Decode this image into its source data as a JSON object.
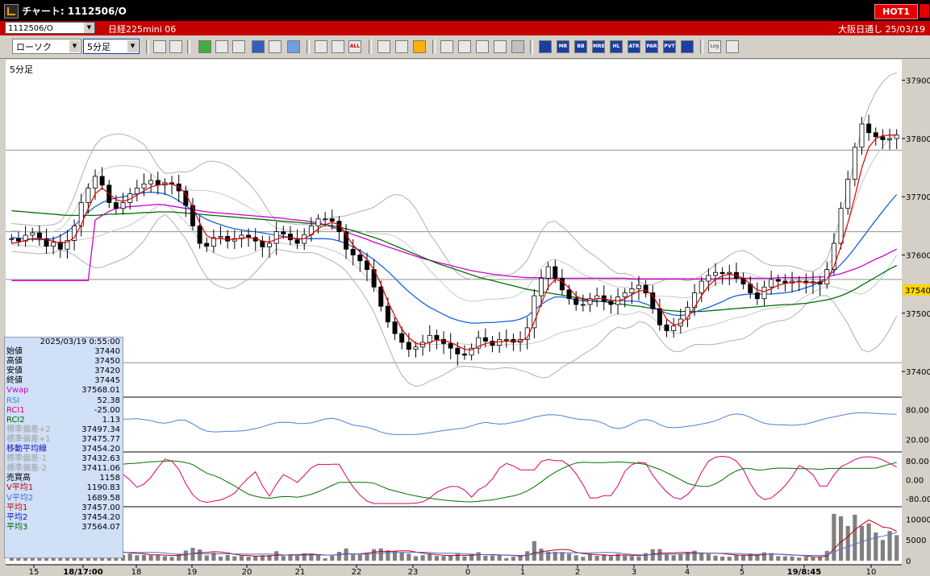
{
  "window": {
    "title": "チャート: 1112506/O",
    "hot_label": "HOT1"
  },
  "infobar": {
    "symbol_code": "1112506/O",
    "symbol_name": "日経225mini 06",
    "market": "大阪日通し",
    "date": "25/03/19"
  },
  "toolbar": {
    "chart_type": "ローソク",
    "interval": "5分足",
    "abbrev_buttons": [
      "ALL",
      "MR",
      "BB",
      "MRE",
      "HL",
      "ATR",
      "PAR",
      "PVT",
      "Log"
    ]
  },
  "chart": {
    "interval_label": "5分足",
    "price_ticks": [
      "37900",
      "37800",
      "37700",
      "37600",
      "37500",
      "37400"
    ],
    "current_price": "37540",
    "rsi_ticks": [
      "80.00",
      "20.00"
    ],
    "rci_ticks": [
      "80.00",
      "0.00",
      "-80.00"
    ],
    "vol_ticks": [
      "10000",
      "5000",
      "0"
    ],
    "time_labels": [
      "15",
      "18/17:00",
      "18",
      "19",
      "20",
      "21",
      "22",
      "23",
      "0",
      "1",
      "2",
      "3",
      "4",
      "5",
      "19/8:45",
      "10"
    ]
  },
  "chart_data": {
    "type": "candlestick",
    "ylim": [
      37360,
      37930
    ],
    "close": [
      37628,
      37624,
      37634,
      37638,
      37628,
      37615,
      37622,
      37610,
      37625,
      37650,
      37690,
      37715,
      37735,
      37720,
      37690,
      37680,
      37690,
      37705,
      37715,
      37722,
      37728,
      37720,
      37724,
      37722,
      37710,
      37685,
      37650,
      37620,
      37615,
      37630,
      37632,
      37624,
      37628,
      37634,
      37630,
      37624,
      37614,
      37620,
      37640,
      37636,
      37626,
      37620,
      37635,
      37650,
      37662,
      37662,
      37658,
      37640,
      37610,
      37600,
      37590,
      37575,
      37545,
      37512,
      37485,
      37465,
      37450,
      37438,
      37442,
      37450,
      37462,
      37455,
      37448,
      37440,
      37430,
      37428,
      37440,
      37458,
      37452,
      37445,
      37455,
      37455,
      37450,
      37455,
      37475,
      37530,
      37560,
      37580,
      37560,
      37540,
      37525,
      37515,
      37515,
      37525,
      37530,
      37520,
      37515,
      37528,
      37535,
      37542,
      37548,
      37535,
      37508,
      37480,
      37470,
      37478,
      37490,
      37510,
      37535,
      37555,
      37565,
      37570,
      37568,
      37570,
      37560,
      37550,
      37535,
      37525,
      37545,
      37558,
      37555,
      37552,
      37555,
      37555,
      37552,
      37554,
      37550,
      37575,
      37620,
      37680,
      37730,
      37785,
      37825,
      37810,
      37803,
      37798,
      37800,
      37806
    ],
    "ma_short": [
      37620,
      37622,
      37625,
      37628,
      37629,
      37626,
      37624,
      37620,
      37622,
      37630,
      37652,
      37680,
      37705,
      37715,
      37705,
      37695,
      37692,
      37696,
      37703,
      37710,
      37717,
      37720,
      37722,
      37722,
      37717,
      37705,
      37682,
      37655,
      37633,
      37628,
      37628,
      37627,
      37627,
      37629,
      37630,
      37628,
      37624,
      37622,
      37627,
      37631,
      37630,
      37627,
      37628,
      37635,
      37645,
      37652,
      37656,
      37652,
      37635,
      37617,
      37605,
      37592,
      37575,
      37550,
      37520,
      37495,
      37473,
      37458,
      37448,
      37446,
      37450,
      37454,
      37453,
      37450,
      37444,
      37438,
      37437,
      37443,
      37448,
      37450,
      37451,
      37452,
      37452,
      37452,
      37458,
      37485,
      37516,
      37545,
      37558,
      37555,
      37543,
      37530,
      37523,
      37522,
      37525,
      37525,
      37522,
      37521,
      37525,
      37532,
      37538,
      37540,
      37530,
      37510,
      37490,
      37480,
      37482,
      37493,
      37510,
      37530,
      37547,
      37558,
      37564,
      37567,
      37565,
      37560,
      37550,
      37540,
      37537,
      37542,
      37548,
      37551,
      37553,
      37554,
      37553,
      37553,
      37552,
      37558,
      37580,
      37615,
      37655,
      37700,
      37750,
      37785,
      37800,
      37805,
      37806,
      37806
    ],
    "ma_mid": [
      37630,
      37629,
      37628,
      37627,
      37626,
      37627,
      37628,
      37633,
      37640,
      37650,
      37662,
      37674,
      37683,
      37690,
      37695,
      37698,
      37700,
      37702,
      37705,
      37707,
      37708,
      37707,
      37705,
      37700,
      37693,
      37685,
      37676,
      37668,
      37661,
      37656,
      37652,
      37648,
      37645,
      37643,
      37641,
      37640,
      37638,
      37636,
      37634,
      37632,
      37630,
      37628,
      37628,
      37628,
      37628,
      37628,
      37627,
      37624,
      37620,
      37614,
      37608,
      37600,
      37592,
      37582,
      37572,
      37560,
      37548,
      37537,
      37527,
      37518,
      37510,
      37504,
      37498,
      37492,
      37488,
      37485,
      37483,
      37483,
      37484,
      37484,
      37485,
      37486,
      37487,
      37490,
      37495,
      37505,
      37515,
      37523,
      37528,
      37528,
      37526,
      37523,
      37521,
      37520,
      37520,
      37521,
      37522,
      37522,
      37521,
      37521,
      37520,
      37516,
      37511,
      37505,
      37500,
      37497,
      37496,
      37498,
      37502,
      37506,
      37510,
      37515,
      37520,
      37526,
      37530,
      37532,
      37533,
      37533,
      37533,
      37533,
      37534,
      37535,
      37537,
      37540,
      37544,
      37548,
      37554,
      37562,
      37572,
      37584,
      37597,
      37612,
      37628,
      37644,
      37660,
      37675,
      37690,
      37704
    ],
    "vwap": [
      37556,
      37556,
      37556,
      37556,
      37556,
      37556,
      37556,
      37556,
      37556,
      37556,
      37556,
      37556,
      37660,
      37668,
      37675,
      37680,
      37682,
      37683,
      37684,
      37685,
      37686,
      37687,
      37686,
      37684,
      37682,
      37680,
      37678,
      37676,
      37674,
      37673,
      37672,
      37671,
      37670,
      37669,
      37668,
      37667,
      37666,
      37665,
      37664,
      37663,
      37661,
      37660,
      37659,
      37657,
      37655,
      37652,
      37648,
      37644,
      37640,
      37635,
      37631,
      37627,
      37622,
      37618,
      37614,
      37610,
      37606,
      37602,
      37598,
      37594,
      37591,
      37588,
      37585,
      37582,
      37579,
      37576,
      37573,
      37571,
      37569,
      37567,
      37566,
      37564,
      37563,
      37562,
      37561,
      37561,
      37561,
      37560,
      37560,
      37560,
      37560,
      37560,
      37560,
      37560,
      37560,
      37560,
      37560,
      37560,
      37560,
      37559,
      37559,
      37559,
      37559,
      37559,
      37559,
      37559,
      37559,
      37559,
      37559,
      37559,
      37559,
      37559,
      37560,
      37560,
      37560,
      37560,
      37560,
      37560,
      37560,
      37560,
      37561,
      37561,
      37561,
      37561,
      37561,
      37562,
      37562,
      37563,
      37565,
      37568,
      37572,
      37576,
      37581,
      37587,
      37593,
      37598,
      37604,
      37610
    ],
    "ma_long": [
      37676,
      37675,
      37674,
      37673,
      37672,
      37671,
      37670,
      37669,
      37668,
      37668,
      37668,
      37668,
      37668,
      37669,
      37670,
      37670,
      37671,
      37671,
      37672,
      37673,
      37673,
      37674,
      37674,
      37674,
      37673,
      37672,
      37671,
      37670,
      37669,
      37668,
      37667,
      37666,
      37665,
      37664,
      37663,
      37662,
      37661,
      37660,
      37659,
      37658,
      37657,
      37656,
      37655,
      37654,
      37653,
      37652,
      37650,
      37648,
      37645,
      37642,
      37638,
      37634,
      37630,
      37626,
      37621,
      37616,
      37611,
      37606,
      37601,
      37596,
      37591,
      37586,
      37582,
      37578,
      37574,
      37570,
      37566,
      37562,
      37559,
      37556,
      37553,
      37550,
      37547,
      37544,
      37541,
      37539,
      37537,
      37535,
      37533,
      37531,
      37529,
      37527,
      37525,
      37523,
      37521,
      37520,
      37518,
      37516,
      37515,
      37513,
      37512,
      37510,
      37508,
      37506,
      37505,
      37504,
      37503,
      37503,
      37503,
      37503,
      37504,
      37505,
      37506,
      37507,
      37508,
      37509,
      37510,
      37511,
      37512,
      37513,
      37514,
      37515,
      37515,
      37516,
      37517,
      37519,
      37521,
      37523,
      37526,
      37530,
      37535,
      37541,
      37548,
      37555,
      37562,
      37569,
      37576,
      37582
    ],
    "rsi_period_width": 0,
    "info": {
      "datetime": "2025/03/19 0:55:00",
      "rows": [
        {
          "label": "始値",
          "value": "37440",
          "color": "#000000"
        },
        {
          "label": "高値",
          "value": "37450",
          "color": "#000000"
        },
        {
          "label": "安値",
          "value": "37420",
          "color": "#000000"
        },
        {
          "label": "終値",
          "value": "37445",
          "color": "#000000"
        },
        {
          "label": "Vwap",
          "value": "37568.01",
          "color": "#d000d0"
        },
        {
          "label": "RSI",
          "value": "52.38",
          "color": "#4f7fd8"
        },
        {
          "label": "RCI1",
          "value": "-25.00",
          "color": "#e0006a"
        },
        {
          "label": "RCI2",
          "value": "1.13",
          "color": "#006400"
        },
        {
          "label": "標準偏差+2",
          "value": "37497.34",
          "color": "#a0a0a0"
        },
        {
          "label": "標準偏差+1",
          "value": "37475.77",
          "color": "#a0a0a0"
        },
        {
          "label": "移動平均線",
          "value": "37454.20",
          "color": "#1010c0"
        },
        {
          "label": "標準偏差-1",
          "value": "37432.63",
          "color": "#a0a0a0"
        },
        {
          "label": "標準偏差-2",
          "value": "37411.06",
          "color": "#a0a0a0"
        },
        {
          "label": "売買高",
          "value": "1158",
          "color": "#000000"
        },
        {
          "label": "V平均1",
          "value": "1190.83",
          "color": "#c00000"
        },
        {
          "label": "V平均2",
          "value": "1689.58",
          "color": "#4f6fd8"
        },
        {
          "label": "平均1",
          "value": "37457.00",
          "color": "#c00000"
        },
        {
          "label": "平均2",
          "value": "37454.20",
          "color": "#1010c0"
        },
        {
          "label": "平均3",
          "value": "37564.07",
          "color": "#006400"
        }
      ]
    }
  }
}
